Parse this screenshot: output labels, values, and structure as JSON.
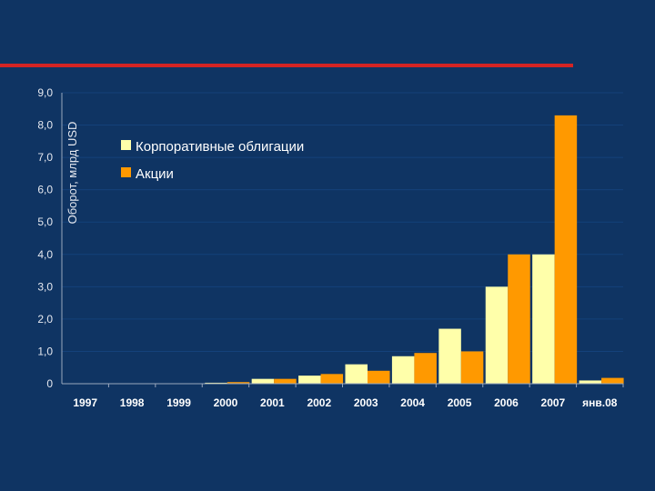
{
  "chart_data": {
    "type": "bar",
    "title": "",
    "xlabel": "",
    "ylabel": "Оборот, млрд USD",
    "ylim": [
      0,
      9
    ],
    "yticks": [
      "0",
      "1,0",
      "2,0",
      "3,0",
      "4,0",
      "5,0",
      "6,0",
      "7,0",
      "8,0",
      "9,0"
    ],
    "categories": [
      "1997",
      "1998",
      "1999",
      "2000",
      "2001",
      "2002",
      "2003",
      "2004",
      "2005",
      "2006",
      "2007",
      "янв.08"
    ],
    "series": [
      {
        "name": "Корпоративные облигации",
        "color": "#ffffaa",
        "values": [
          0.0,
          0.0,
          0.0,
          0.03,
          0.15,
          0.25,
          0.6,
          0.85,
          1.7,
          3.0,
          4.0,
          0.1
        ]
      },
      {
        "name": "Акции",
        "color": "#ff9900",
        "values": [
          0.0,
          0.0,
          0.0,
          0.05,
          0.15,
          0.3,
          0.4,
          0.95,
          1.0,
          4.0,
          8.3,
          0.18
        ]
      }
    ],
    "grid": true,
    "legend_position": "top-left"
  },
  "colors": {
    "background": "#0f3463",
    "accent_line": "#d42424"
  }
}
